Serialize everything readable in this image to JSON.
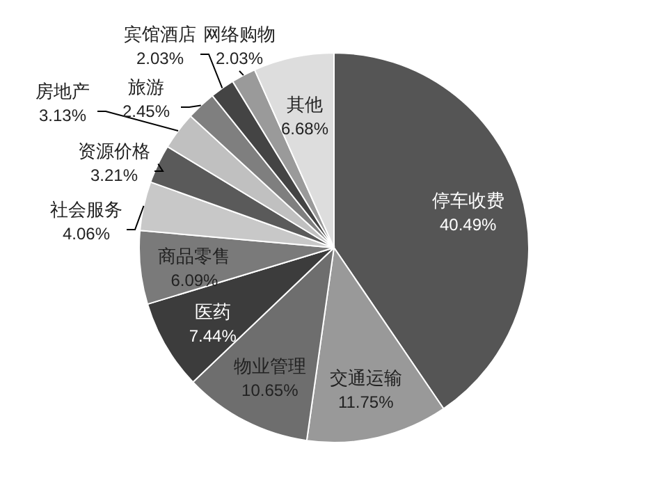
{
  "chart_data": {
    "type": "pie",
    "categories": [
      "停车收费",
      "交通运输",
      "物业管理",
      "医药",
      "商品零售",
      "社会服务",
      "资源价格",
      "房地产",
      "旅游",
      "宾馆酒店",
      "网络购物",
      "其他"
    ],
    "values": [
      40.49,
      11.75,
      10.65,
      7.44,
      6.09,
      4.06,
      3.21,
      3.13,
      2.45,
      2.03,
      2.03,
      6.68
    ],
    "value_labels": [
      "40.49%",
      "11.75%",
      "10.65%",
      "7.44%",
      "6.09%",
      "4.06%",
      "3.21%",
      "3.13%",
      "2.45%",
      "2.03%",
      "2.03%",
      "6.68%"
    ],
    "colors": [
      "#555555",
      "#999999",
      "#6e6e6e",
      "#3c3c3c",
      "#7a7a7a",
      "#c8c8c8",
      "#5a5a5a",
      "#c0c0c0",
      "#7f7f7f",
      "#444444",
      "#9a9a9a",
      "#dddddd"
    ]
  }
}
